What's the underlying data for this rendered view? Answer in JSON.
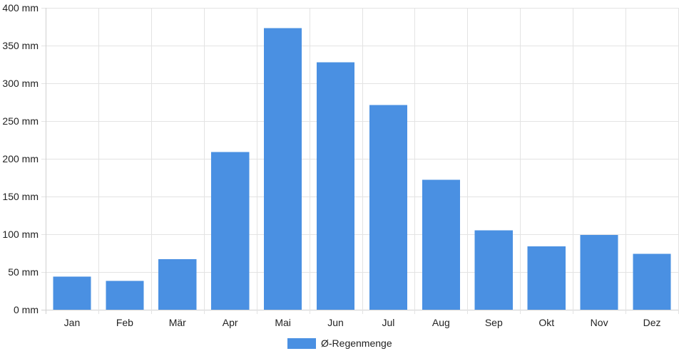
{
  "chart_data": {
    "type": "bar",
    "title": "",
    "xlabel": "",
    "ylabel": "",
    "categories": [
      "Jan",
      "Feb",
      "Mär",
      "Apr",
      "Mai",
      "Jun",
      "Jul",
      "Aug",
      "Sep",
      "Okt",
      "Nov",
      "Dez"
    ],
    "series": [
      {
        "name": "Ø-Regenmenge",
        "color": "#4a90e2",
        "values": [
          44,
          38,
          67,
          209,
          373,
          328,
          271,
          172,
          105,
          84,
          99,
          74
        ]
      }
    ],
    "ylim": [
      0,
      400
    ],
    "yticks": [
      0,
      50,
      100,
      150,
      200,
      250,
      300,
      350,
      400
    ],
    "ytick_labels": [
      "0 mm",
      "50 mm",
      "100 mm",
      "150 mm",
      "200 mm",
      "250 mm",
      "300 mm",
      "350 mm",
      "400 mm"
    ],
    "unit": "mm",
    "grid": true,
    "legend_position": "bottom-center"
  }
}
